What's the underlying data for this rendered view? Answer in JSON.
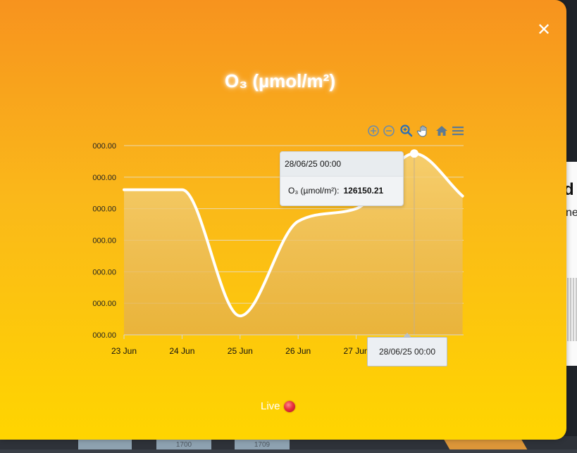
{
  "modal": {
    "title": "O₃ (µmol/m²)",
    "close_icon": "close-icon",
    "live_label": "Live",
    "live_color": "#e8303f"
  },
  "toolbar": {
    "icons": [
      "zoom-in-icon",
      "zoom-out-icon",
      "zoom-select-icon",
      "pan-hand-icon",
      "home-reset-icon",
      "menu-icon"
    ],
    "accent_color": "#5d7a93",
    "active_color": "#2b6fb6"
  },
  "tooltip": {
    "header": "28/06/25 00:00",
    "series_label": "O₃ (µmol/m²):",
    "value": "126150.21"
  },
  "crosshair_label": "28/06/25 00:00",
  "background": {
    "heading_fragment": "d",
    "sub_fragment": "ne",
    "chip_1": "1700",
    "chip_2": "1709"
  },
  "chart_data": {
    "type": "area",
    "series": [
      {
        "name": "O₃ (µmol/m²)",
        "x": [
          "23 Jun 00:00",
          "24 Jun 00:00",
          "25 Jun 00:00",
          "26 Jun 00:00",
          "27 Jun 00:00",
          "28 Jun 00:00",
          "28 Jun 20:00"
        ],
        "values": [
          125000,
          125000,
          121000,
          124000,
          124400,
          126150.21,
          124800
        ]
      }
    ],
    "x_tick_labels": [
      "23 Jun",
      "24 Jun",
      "25 Jun",
      "26 Jun",
      "27 Jun"
    ],
    "y_tick_labels": [
      "000.00",
      "000.00",
      "000.00",
      "000.00",
      "000.00",
      "000.00",
      "000.00"
    ],
    "ylim": [
      120400,
      126400
    ],
    "xlim_days": [
      0,
      5.85
    ],
    "grid": true,
    "line_color": "#ffffff",
    "fill_color_top": "#f6d37a",
    "fill_color_bottom": "#e3ad4a"
  }
}
